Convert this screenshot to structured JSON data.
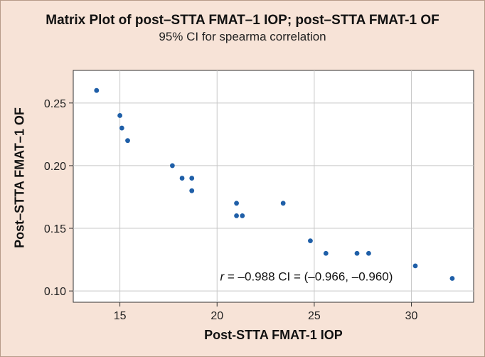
{
  "chart_data": {
    "type": "scatter",
    "title": "Matrix Plot of post–STTA FMAT–1 IOP; post–STTA FMAT-1 OF",
    "subtitle": "95% CI for spearma correlation",
    "xlabel": "Post-STTA FMAT-1 IOP",
    "ylabel": "Post–STTA FMAT–1 OF",
    "xlim": [
      12.6,
      33.2
    ],
    "ylim": [
      0.091,
      0.276
    ],
    "xticks": [
      15,
      20,
      25,
      30
    ],
    "xtick_labels": [
      "15",
      "20",
      "25",
      "30"
    ],
    "yticks": [
      0.1,
      0.15,
      0.2,
      0.25
    ],
    "ytick_labels": [
      "0.10",
      "0.15",
      "0.20",
      "0.25"
    ],
    "grid": true,
    "point_color": "#1f5fa8",
    "points": [
      {
        "x": 13.8,
        "y": 0.26
      },
      {
        "x": 15.0,
        "y": 0.24
      },
      {
        "x": 15.1,
        "y": 0.23
      },
      {
        "x": 15.4,
        "y": 0.22
      },
      {
        "x": 17.7,
        "y": 0.2
      },
      {
        "x": 18.2,
        "y": 0.19
      },
      {
        "x": 18.7,
        "y": 0.19
      },
      {
        "x": 18.7,
        "y": 0.18
      },
      {
        "x": 21.0,
        "y": 0.17
      },
      {
        "x": 21.0,
        "y": 0.16
      },
      {
        "x": 21.3,
        "y": 0.16
      },
      {
        "x": 23.4,
        "y": 0.17
      },
      {
        "x": 24.8,
        "y": 0.14
      },
      {
        "x": 25.6,
        "y": 0.13
      },
      {
        "x": 27.2,
        "y": 0.13
      },
      {
        "x": 27.8,
        "y": 0.13
      },
      {
        "x": 30.2,
        "y": 0.12
      },
      {
        "x": 32.1,
        "y": 0.11
      }
    ],
    "annotation": {
      "r_symbol": "r",
      "text": " = –0.988 CI = (–0.966, –0.960)",
      "anchor_x": 24.6,
      "anchor_y": 0.1082
    }
  }
}
